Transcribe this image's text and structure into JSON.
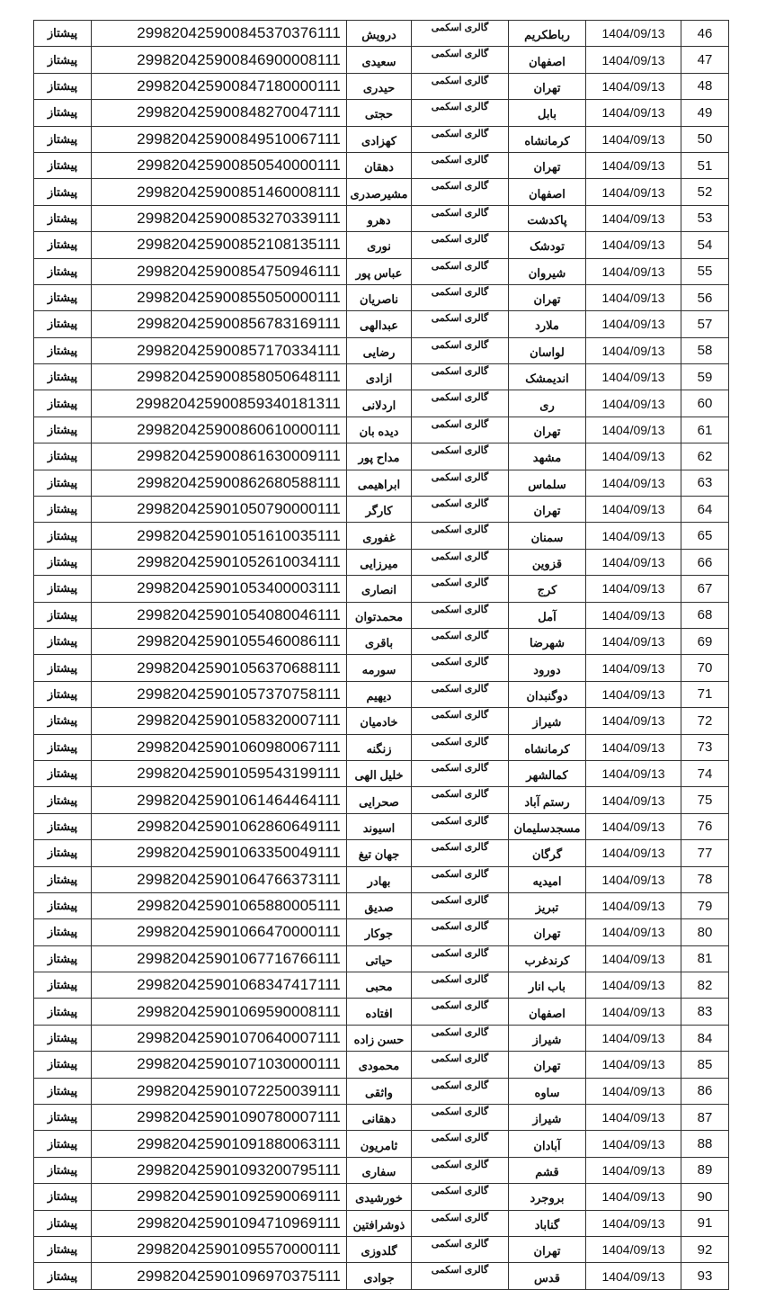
{
  "rows": [
    [
      "46",
      "1404/09/13",
      "رباطکریم",
      "گالری اسکمی",
      "درویش",
      "299820425900845370376111",
      "پیشتاز"
    ],
    [
      "47",
      "1404/09/13",
      "اصفهان",
      "گالری اسکمی",
      "سعیدی",
      "299820425900846900008111",
      "پیشتاز"
    ],
    [
      "48",
      "1404/09/13",
      "تهران",
      "گالری اسکمی",
      "حیدری",
      "299820425900847180000111",
      "پیشتاز"
    ],
    [
      "49",
      "1404/09/13",
      "بابل",
      "گالری اسکمی",
      "حجتی",
      "299820425900848270047111",
      "پیشتاز"
    ],
    [
      "50",
      "1404/09/13",
      "کرمانشاه",
      "گالری اسکمی",
      "کهزادی",
      "299820425900849510067111",
      "پیشتاز"
    ],
    [
      "51",
      "1404/09/13",
      "تهران",
      "گالری اسکمی",
      "دهقان",
      "299820425900850540000111",
      "پیشتاز"
    ],
    [
      "52",
      "1404/09/13",
      "اصفهان",
      "گالری اسکمی",
      "مشیرصدری",
      "299820425900851460008111",
      "پیشتاز"
    ],
    [
      "53",
      "1404/09/13",
      "پاکدشت",
      "گالری اسکمی",
      "دهرو",
      "299820425900853270339111",
      "پیشتاز"
    ],
    [
      "54",
      "1404/09/13",
      "تودشک",
      "گالری اسکمی",
      "نوری",
      "299820425900852108135111",
      "پیشتاز"
    ],
    [
      "55",
      "1404/09/13",
      "شیروان",
      "گالری اسکمی",
      "عباس پور",
      "299820425900854750946111",
      "پیشتاز"
    ],
    [
      "56",
      "1404/09/13",
      "تهران",
      "گالری اسکمی",
      "ناصریان",
      "299820425900855050000111",
      "پیشتاز"
    ],
    [
      "57",
      "1404/09/13",
      "ملارد",
      "گالری اسکمی",
      "عبدالهی",
      "299820425900856783169111",
      "پیشتاز"
    ],
    [
      "58",
      "1404/09/13",
      "لواسان",
      "گالری اسکمی",
      "رضایی",
      "299820425900857170334111",
      "پیشتاز"
    ],
    [
      "59",
      "1404/09/13",
      "اندیمشک",
      "گالری اسکمی",
      "ازادی",
      "299820425900858050648111",
      "پیشتاز"
    ],
    [
      "60",
      "1404/09/13",
      "ری",
      "گالری اسکمی",
      "اردلانی",
      "299820425900859340181311",
      "پیشتاز"
    ],
    [
      "61",
      "1404/09/13",
      "تهران",
      "گالری اسکمی",
      "دیده بان",
      "299820425900860610000111",
      "پیشتاز"
    ],
    [
      "62",
      "1404/09/13",
      "مشهد",
      "گالری اسکمی",
      "مداح پور",
      "299820425900861630009111",
      "پیشتاز"
    ],
    [
      "63",
      "1404/09/13",
      "سلماس",
      "گالری اسکمی",
      "ابراهیمی",
      "299820425900862680588111",
      "پیشتاز"
    ],
    [
      "64",
      "1404/09/13",
      "تهران",
      "گالری اسکمی",
      "کارگر",
      "299820425901050790000111",
      "پیشتاز"
    ],
    [
      "65",
      "1404/09/13",
      "سمنان",
      "گالری اسکمی",
      "غفوری",
      "299820425901051610035111",
      "پیشتاز"
    ],
    [
      "66",
      "1404/09/13",
      "قزوین",
      "گالری اسکمی",
      "میرزایی",
      "299820425901052610034111",
      "پیشتاز"
    ],
    [
      "67",
      "1404/09/13",
      "کرج",
      "گالری اسکمی",
      "انصاری",
      "299820425901053400003111",
      "پیشتاز"
    ],
    [
      "68",
      "1404/09/13",
      "آمل",
      "گالری اسکمی",
      "محمدتوان",
      "299820425901054080046111",
      "پیشتاز"
    ],
    [
      "69",
      "1404/09/13",
      "شهرضا",
      "گالری اسکمی",
      "باقری",
      "299820425901055460086111",
      "پیشتاز"
    ],
    [
      "70",
      "1404/09/13",
      "دورود",
      "گالری اسکمی",
      "سورمه",
      "299820425901056370688111",
      "پیشتاز"
    ],
    [
      "71",
      "1404/09/13",
      "دوگنبدان",
      "گالری اسکمی",
      "دیهیم",
      "299820425901057370758111",
      "پیشتاز"
    ],
    [
      "72",
      "1404/09/13",
      "شیراز",
      "گالری اسکمی",
      "خادمیان",
      "299820425901058320007111",
      "پیشتاز"
    ],
    [
      "73",
      "1404/09/13",
      "کرمانشاه",
      "گالری اسکمی",
      "زنگنه",
      "299820425901060980067111",
      "پیشتاز"
    ],
    [
      "74",
      "1404/09/13",
      "کمالشهر",
      "گالری اسکمی",
      "خلیل الهی",
      "299820425901059543199111",
      "پیشتاز"
    ],
    [
      "75",
      "1404/09/13",
      "رستم آباد",
      "گالری اسکمی",
      "صحرایی",
      "299820425901061464464111",
      "پیشتاز"
    ],
    [
      "76",
      "1404/09/13",
      "مسجدسلیمان",
      "گالری اسکمی",
      "اسیوند",
      "299820425901062860649111",
      "پیشتاز"
    ],
    [
      "77",
      "1404/09/13",
      "گرگان",
      "گالری اسکمی",
      "جهان تیغ",
      "299820425901063350049111",
      "پیشتاز"
    ],
    [
      "78",
      "1404/09/13",
      "امیدیه",
      "گالری اسکمی",
      "بهادر",
      "299820425901064766373111",
      "پیشتاز"
    ],
    [
      "79",
      "1404/09/13",
      "تبریز",
      "گالری اسکمی",
      "صدیق",
      "299820425901065880005111",
      "پیشتاز"
    ],
    [
      "80",
      "1404/09/13",
      "تهران",
      "گالری اسکمی",
      "جوکار",
      "299820425901066470000111",
      "پیشتاز"
    ],
    [
      "81",
      "1404/09/13",
      "کرندغرب",
      "گالری اسکمی",
      "حیاتی",
      "299820425901067716766111",
      "پیشتاز"
    ],
    [
      "82",
      "1404/09/13",
      "باب انار",
      "گالری اسکمی",
      "محبی",
      "299820425901068347417111",
      "پیشتاز"
    ],
    [
      "83",
      "1404/09/13",
      "اصفهان",
      "گالری اسکمی",
      "افتاده",
      "299820425901069590008111",
      "پیشتاز"
    ],
    [
      "84",
      "1404/09/13",
      "شیراز",
      "گالری اسکمی",
      "حسن زاده",
      "299820425901070640007111",
      "پیشتاز"
    ],
    [
      "85",
      "1404/09/13",
      "تهران",
      "گالری اسکمی",
      "محمودی",
      "299820425901071030000111",
      "پیشتاز"
    ],
    [
      "86",
      "1404/09/13",
      "ساوه",
      "گالری اسکمی",
      "واثقی",
      "299820425901072250039111",
      "پیشتاز"
    ],
    [
      "87",
      "1404/09/13",
      "شیراز",
      "گالری اسکمی",
      "دهقانی",
      "299820425901090780007111",
      "پیشتاز"
    ],
    [
      "88",
      "1404/09/13",
      "آبادان",
      "گالری اسکمی",
      "ثامریون",
      "299820425901091880063111",
      "پیشتاز"
    ],
    [
      "89",
      "1404/09/13",
      "قشم",
      "گالری اسکمی",
      "سفاری",
      "299820425901093200795111",
      "پیشتاز"
    ],
    [
      "90",
      "1404/09/13",
      "بروجرد",
      "گالری اسکمی",
      "خورشیدی",
      "299820425901092590069111",
      "پیشتاز"
    ],
    [
      "91",
      "1404/09/13",
      "گناباد",
      "گالری اسکمی",
      "ذوشرافتین",
      "299820425901094710969111",
      "پیشتاز"
    ],
    [
      "92",
      "1404/09/13",
      "تهران",
      "گالری اسکمی",
      "گلدوزی",
      "299820425901095570000111",
      "پیشتاز"
    ],
    [
      "93",
      "1404/09/13",
      "قدس",
      "گالری اسکمی",
      "جوادی",
      "299820425901096970375111",
      "پیشتاز"
    ]
  ]
}
